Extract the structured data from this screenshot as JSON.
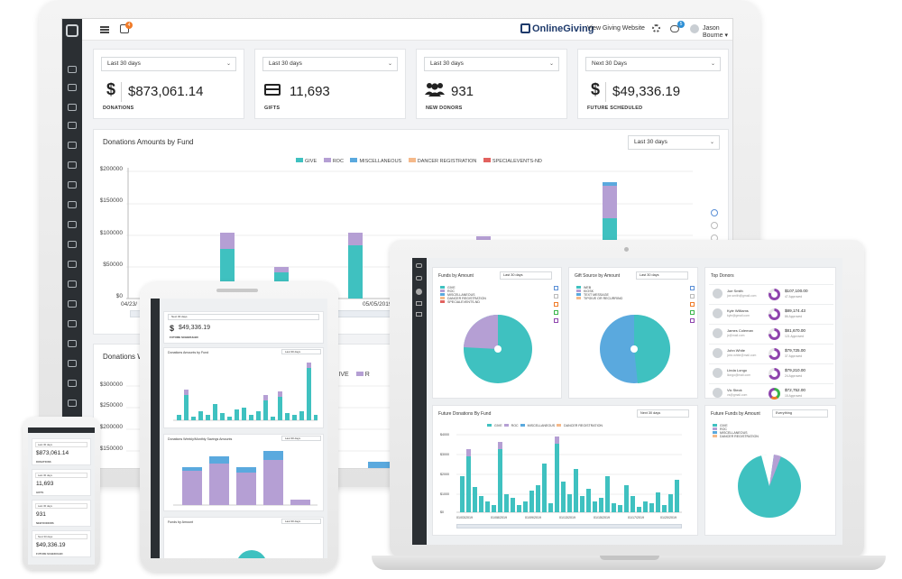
{
  "header": {
    "brand": "OnlineGiving",
    "view_site": "View Giving Website",
    "user": "Jason Bourne",
    "tasks_badge": "4",
    "chat_badge": "5"
  },
  "stats": [
    {
      "range": "Last 30 days",
      "icon": "$",
      "value": "$873,061.14",
      "label": "DONATIONS"
    },
    {
      "range": "Last 30 days",
      "icon": "card",
      "value": "11,693",
      "label": "GIFTS"
    },
    {
      "range": "Last 30 days",
      "icon": "users",
      "value": "931",
      "label": "NEW DONORS"
    },
    {
      "range": "Next 30 Days",
      "icon": "$",
      "value": "$49,336.19",
      "label": "FUTURE SCHEDULED"
    }
  ],
  "donations_chart": {
    "title": "Donations Amounts by Fund",
    "range": "Last 30 days",
    "legend": [
      "GIVE",
      "ROC",
      "MISCELLANEOUS",
      "DANCER REGISTRATION",
      "SPECIALEVENTS-ND"
    ],
    "colors": {
      "give": "#3fc1c0",
      "roc": "#b59fd4",
      "misc": "#5aa9de",
      "dancer": "#f5b98a",
      "special": "#e2625f"
    },
    "y_ticks": [
      "$200000",
      "$150000",
      "$100000",
      "$50000",
      "$0"
    ],
    "x_ticks": [
      "04/23/",
      "05/05/2019"
    ]
  },
  "weekly_chart": {
    "title": "Donations W",
    "y_ticks": [
      "$300000",
      "$250000",
      "$200000",
      "$150000"
    ],
    "legend": [
      "GIVE",
      "R"
    ]
  },
  "laptop": {
    "funds_title": "Funds by Amount",
    "funds_range": "Last 30 days",
    "funds_legend": [
      "GIVE",
      "ROC",
      "MISCELLANEOUS",
      "DANCER REGISTRATION",
      "SPECIALEVENTS-ND"
    ],
    "source_title": "Gift Source by Amount",
    "source_range": "Last 30 days",
    "source_legend": [
      "WEB",
      "KIOSK",
      "TEXT MESSAGE",
      "TIPGIVE OR RECURRING"
    ],
    "donors_title": "Top Donors",
    "donors": [
      {
        "name": "Joe Smith",
        "email": "joe.smith@gmail.com",
        "amount": "$107,100.00",
        "approved": "47 Approved",
        "color": "#8e44ad"
      },
      {
        "name": "Kyle Williams",
        "email": "kyle@gmail.com",
        "amount": "$89,174.43",
        "approved": "86 Approved",
        "color": "#8e44ad"
      },
      {
        "name": "James Coleman",
        "email": "jc@mail.com",
        "amount": "$81,670.00",
        "approved": "121 Approved",
        "color": "#8e44ad"
      },
      {
        "name": "John White",
        "email": "john.white@mail.com",
        "amount": "$79,725.00",
        "approved": "37 Approved",
        "color": "#8e44ad"
      },
      {
        "name": "Linda Longo",
        "email": "llongo@mail.com",
        "amount": "$79,210.00",
        "approved": "24 Approved",
        "color": "#8e44ad"
      },
      {
        "name": "Vic Steck",
        "email": "vs@gmail.com",
        "amount": "$72,752.00",
        "approved": "15 Approved",
        "color": "#3ab54a"
      }
    ],
    "future_title": "Future Donations By Fund",
    "future_range": "Next 30 days",
    "future_legend": [
      "GIVE",
      "ROC",
      "MISCELLANEOUS",
      "DANCER REGISTRATION"
    ],
    "future_y": [
      "$4000",
      "$3000",
      "$2000",
      "$1000",
      "$0"
    ],
    "future_x": [
      "01/03/2019",
      "01/08/2019",
      "01/09/2019",
      "01/13/2019",
      "01/15/2019",
      "01/17/2019",
      "01/20/2019"
    ],
    "future_funds_title": "Future Funds by Amount",
    "future_funds_range": "Everything",
    "future_funds_legend": [
      "GIVE",
      "ROC",
      "MISCELLANEOUS",
      "DANCER REGISTRATION"
    ]
  },
  "tablet": {
    "range": "Next 30 days",
    "value": "$49,336.19",
    "label": "FUTURE SCHEDULED",
    "chart1_title": "Donations Amounts by Fund",
    "chart2_title": "Donations Weekly/Monthly Savings Amounts",
    "chart3_title": "Funds by Amount",
    "chart_range": "Last 30 days"
  },
  "phone": {
    "cards": [
      {
        "range": "Last 30 days",
        "value": "$873,061.14",
        "label": "DONATIONS"
      },
      {
        "range": "Last 30 days",
        "value": "11,693",
        "label": "GIFTS"
      },
      {
        "range": "Last 30 days",
        "value": "931",
        "label": "NEW DONORS"
      },
      {
        "range": "Next 30 days",
        "value": "$49,336.19",
        "label": "FUTURE SCHEDULED"
      }
    ]
  }
}
